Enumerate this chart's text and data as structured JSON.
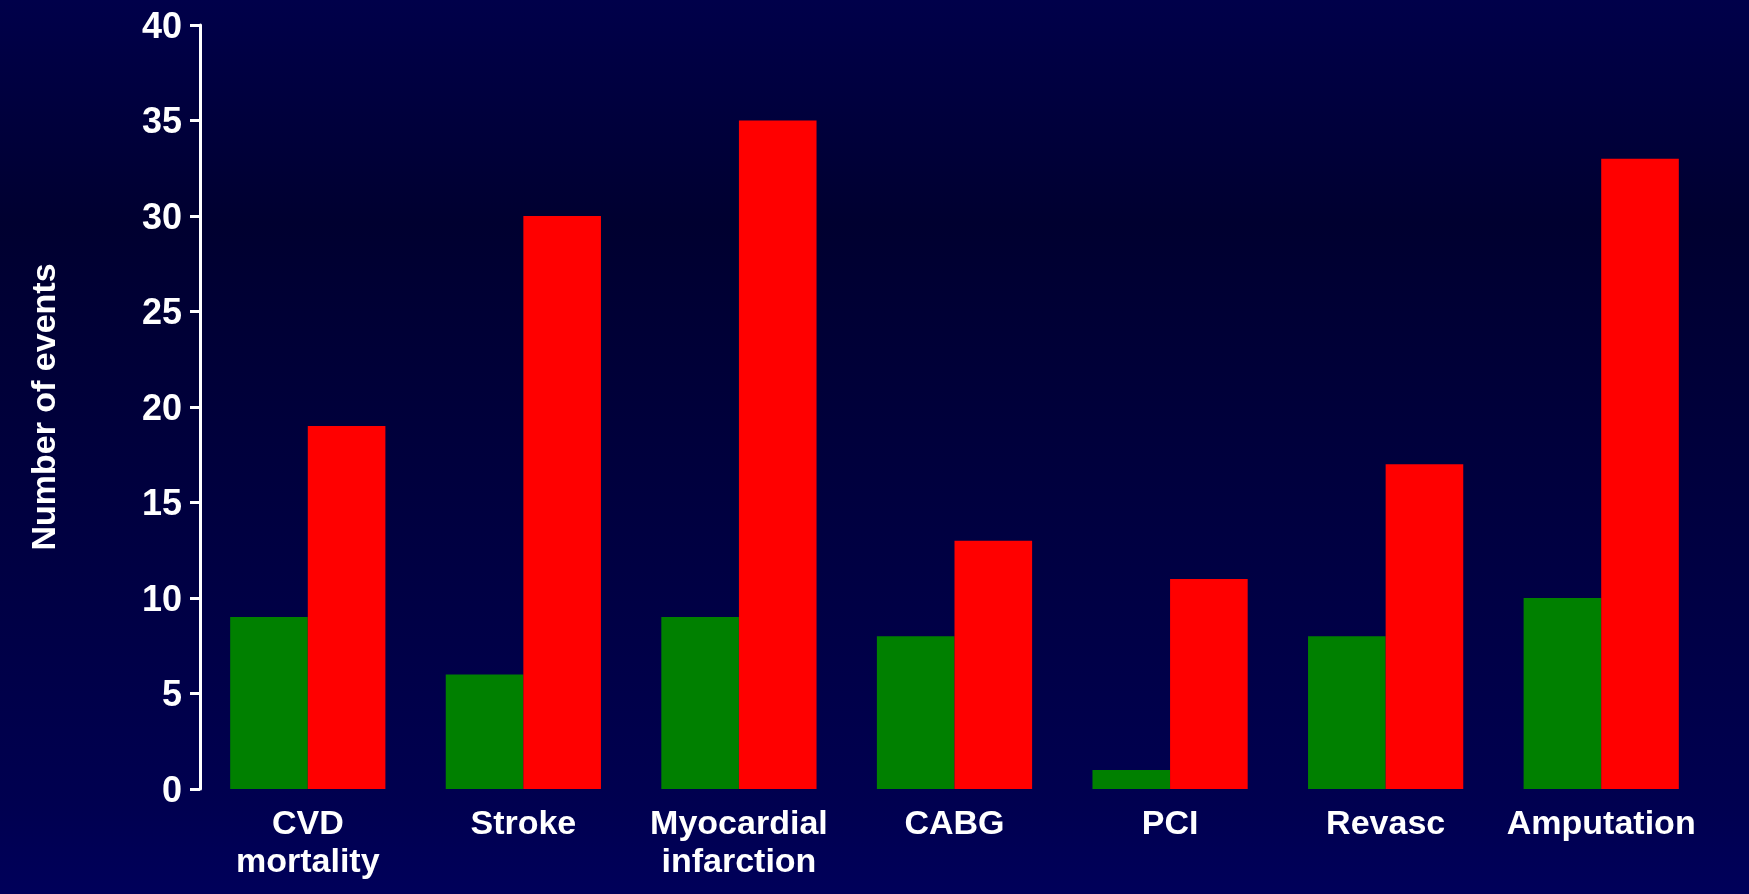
{
  "chart_data": {
    "type": "bar",
    "ylabel": "Number of events",
    "categories": [
      "CVD\nmortality",
      "Stroke",
      "Myocardial\ninfarction",
      "CABG",
      "PCI",
      "Revasc",
      "Amputation"
    ],
    "series": [
      {
        "color": "#008000",
        "values": [
          9,
          6,
          9,
          8,
          1,
          8,
          10
        ]
      },
      {
        "color": "#ff0000",
        "values": [
          19,
          30,
          35,
          13,
          11,
          17,
          33
        ]
      }
    ],
    "ylim": [
      0,
      40
    ],
    "yticks": [
      0,
      5,
      10,
      15,
      20,
      25,
      30,
      35,
      40
    ],
    "grid": false
  }
}
